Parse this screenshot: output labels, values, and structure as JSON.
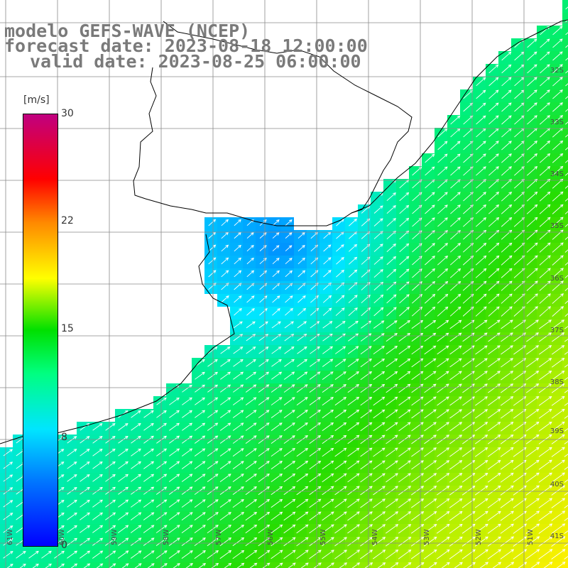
{
  "title": {
    "line1": "modelo GEFS-WAVE (NCEP)",
    "line2": "forecast date: 2023-08-18 12:00:00",
    "line3": "valid date: 2023-08-25 06:00:00"
  },
  "colorbar": {
    "unit": "[m/s]",
    "ticks": [
      "30",
      "22",
      "15",
      "8",
      "0"
    ],
    "colors": [
      "#0000ff",
      "#0080ff",
      "#00e0ff",
      "#00ff80",
      "#00e000",
      "#80ff00",
      "#ffff00",
      "#ff8000",
      "#ff0000",
      "#c00080"
    ]
  },
  "map": {
    "lat_labels": [
      "32S",
      "33S",
      "34S",
      "35S",
      "36S",
      "37S",
      "38S",
      "39S",
      "40S",
      "41S"
    ],
    "lon_labels": [
      "61W",
      "60W",
      "59W",
      "58W",
      "57W",
      "56W",
      "55W",
      "54W",
      "53W",
      "52W",
      "51W"
    ],
    "ocean_color_low": "#0033ff",
    "ocean_color_mid": "#00e5ff",
    "ocean_color_high": "#ffee00"
  }
}
